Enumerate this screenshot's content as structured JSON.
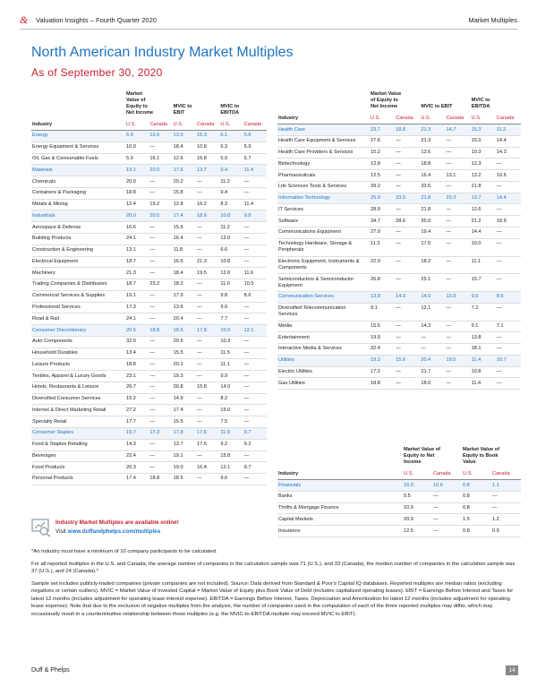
{
  "header": {
    "brand_mark": "&",
    "report": "Valuation Insights – Fourth Quarter 2020",
    "section": "Market Multiples"
  },
  "title": "North American Industry Market Multiples",
  "subtitle": "As of September 30, 2020",
  "left_table": {
    "column_groups": [
      "Market Value of Equity to Net Income",
      "MVIC to EBIT",
      "MVIC to EBITDA"
    ],
    "column_headers": [
      "Industry",
      "U.S.",
      "Canada",
      "U.S.",
      "Canada",
      "U.S.",
      "Canada"
    ],
    "rows": [
      {
        "name": "Energy",
        "sector": true,
        "values": [
          "5.9",
          "12.6",
          "13.0",
          "15.3",
          "6.1",
          "5.8"
        ]
      },
      {
        "name": "Energy Equipment & Services",
        "values": [
          "10.9",
          "—",
          "18.4",
          "10.8",
          "6.3",
          "5.9"
        ]
      },
      {
        "name": "Oil, Gas & Consumable Fuels",
        "values": [
          "5.9",
          "16.1",
          "12.6",
          "16.8",
          "5.9",
          "5.7"
        ]
      },
      {
        "name": "Materials",
        "sector": true,
        "values": [
          "19.1",
          "20.0",
          "17.6",
          "13.7",
          "9.4",
          "11.4"
        ]
      },
      {
        "name": "Chemicals",
        "values": [
          "20.0",
          "—",
          "20.2",
          "—",
          "11.2",
          "—"
        ]
      },
      {
        "name": "Containers & Packaging",
        "values": [
          "18.8",
          "—",
          "15.8",
          "—",
          "9.4",
          "—"
        ]
      },
      {
        "name": "Metals & Mining",
        "values": [
          "12.4",
          "19.2",
          "12.8",
          "16.2",
          "8.3",
          "11.4"
        ]
      },
      {
        "name": "Industrials",
        "sector": true,
        "values": [
          "20.0",
          "20.5",
          "17.4",
          "18.6",
          "10.8",
          "9.8"
        ]
      },
      {
        "name": "Aerospace & Defense",
        "values": [
          "16.6",
          "—",
          "15.6",
          "—",
          "11.2",
          "—"
        ]
      },
      {
        "name": "Building Products",
        "values": [
          "24.1",
          "—",
          "16.4",
          "—",
          "12.0",
          "—"
        ]
      },
      {
        "name": "Construction & Engineering",
        "values": [
          "13.1",
          "—",
          "11.8",
          "—",
          "6.6",
          "—"
        ]
      },
      {
        "name": "Electrical Equipment",
        "values": [
          "18.7",
          "—",
          "16.6",
          "21.3",
          "10.8",
          "—"
        ]
      },
      {
        "name": "Machinery",
        "values": [
          "21.3",
          "—",
          "18.4",
          "19.5",
          "12.6",
          "11.6"
        ]
      },
      {
        "name": "Trading Companies & Distributors",
        "values": [
          "18.7",
          "23.2",
          "18.2",
          "—",
          "11.0",
          "10.5"
        ]
      },
      {
        "name": "Commercial Services & Supplies",
        "values": [
          "19.1",
          "—",
          "17.9",
          "—",
          "9.8",
          "8.6"
        ]
      },
      {
        "name": "Professional Services",
        "values": [
          "17.3",
          "—",
          "13.6",
          "—",
          "9.9",
          "—"
        ]
      },
      {
        "name": "Road & Rail",
        "values": [
          "24.1",
          "—",
          "20.4",
          "—",
          "7.7",
          "—"
        ]
      },
      {
        "name": "Consumer Discretionary",
        "sector": true,
        "values": [
          "20.5",
          "18.8",
          "18.5",
          "17.8",
          "10.9",
          "12.1"
        ]
      },
      {
        "name": "Auto Components",
        "values": [
          "32.0",
          "—",
          "20.5",
          "—",
          "10.3",
          "—"
        ]
      },
      {
        "name": "Household Durables",
        "values": [
          "13.4",
          "—",
          "15.5",
          "—",
          "11.5",
          "—"
        ]
      },
      {
        "name": "Leisure Products",
        "values": [
          "18.8",
          "—",
          "20.1",
          "—",
          "11.1",
          "—"
        ]
      },
      {
        "name": "Textiles, Apparel & Luxury Goods",
        "values": [
          "23.1",
          "—",
          "19.3",
          "—",
          "9.9",
          "—"
        ]
      },
      {
        "name": "Hotels, Restaurants & Leisure",
        "values": [
          "26.7",
          "—",
          "30.8",
          "15.8",
          "14.0",
          "—"
        ]
      },
      {
        "name": "Diversified Consumer Services",
        "values": [
          "15.2",
          "—",
          "14.9",
          "—",
          "8.2",
          "—"
        ]
      },
      {
        "name": "Internet & Direct Marketing Retail",
        "values": [
          "27.2",
          "—",
          "17.4",
          "—",
          "15.0",
          "—"
        ]
      },
      {
        "name": "Specialty Retail",
        "values": [
          "17.7",
          "—",
          "15.5",
          "—",
          "7.5",
          "—"
        ]
      },
      {
        "name": "Consumer Staples",
        "sector": true,
        "values": [
          "19.7",
          "17.3",
          "17.8",
          "17.6",
          "11.9",
          "9.7"
        ]
      },
      {
        "name": "Food & Staples Retailing",
        "values": [
          "14.3",
          "—",
          "13.7",
          "17.6",
          "9.2",
          "9.2"
        ]
      },
      {
        "name": "Beverages",
        "values": [
          "22.4",
          "—",
          "19.1",
          "—",
          "15.8",
          "—"
        ]
      },
      {
        "name": "Food Products",
        "values": [
          "20.3",
          "—",
          "19.0",
          "16.4",
          "12.1",
          "9.7"
        ]
      },
      {
        "name": "Personal Products",
        "values": [
          "17.4",
          "18.8",
          "18.5",
          "—",
          "9.6",
          "—"
        ]
      }
    ]
  },
  "right_table": {
    "column_groups": [
      "Market Value of Equity to Net Income",
      "MVIC to EBIT",
      "MVIC to EBITDA"
    ],
    "column_headers": [
      "Industry",
      "U.S.",
      "Canada",
      "U.S.",
      "Canada",
      "U.S.",
      "Canada"
    ],
    "rows": [
      {
        "name": "Health Care",
        "sector": true,
        "values": [
          "23.7",
          "18.8",
          "21.3",
          "14.7",
          "15.3",
          "11.2"
        ]
      },
      {
        "name": "Health Care Equipment & Services",
        "values": [
          "27.6",
          "—",
          "21.3",
          "—",
          "15.0",
          "14.4"
        ]
      },
      {
        "name": "Health Care Providers & Services",
        "values": [
          "15.2",
          "—",
          "13.6",
          "—",
          "10.3",
          "14.3"
        ]
      },
      {
        "name": "Biotechnology",
        "values": [
          "12.8",
          "—",
          "18.8",
          "—",
          "12.3",
          "—"
        ]
      },
      {
        "name": "Pharmaceuticals",
        "values": [
          "12.5",
          "—",
          "16.4",
          "13.1",
          "13.2",
          "10.6"
        ]
      },
      {
        "name": "Life Sciences Tools & Services",
        "values": [
          "39.2",
          "—",
          "33.6",
          "—",
          "21.8",
          "—"
        ]
      },
      {
        "name": "Information Technology",
        "sector": true,
        "values": [
          "25.9",
          "23.5",
          "21.8",
          "20.3",
          "13.7",
          "14.4"
        ]
      },
      {
        "name": "IT Services",
        "values": [
          "28.9",
          "—",
          "21.8",
          "—",
          "12.6",
          "—"
        ]
      },
      {
        "name": "Software",
        "values": [
          "34.7",
          "28.6",
          "35.0",
          "—",
          "21.2",
          "18.9"
        ]
      },
      {
        "name": "Communications Equipment",
        "values": [
          "27.9",
          "—",
          "19.4",
          "—",
          "14.4",
          "—"
        ]
      },
      {
        "name": "Technology Hardware, Storage & Peripherals",
        "values": [
          "11.3",
          "—",
          "17.0",
          "—",
          "10.0",
          "—"
        ]
      },
      {
        "name": "Electronic Equipment, Instruments & Components",
        "values": [
          "22.9",
          "—",
          "18.2",
          "—",
          "11.1",
          "—"
        ]
      },
      {
        "name": "Semiconductors & Semiconductor Equipment",
        "values": [
          "26.8",
          "—",
          "25.1",
          "—",
          "15.7",
          "—"
        ]
      },
      {
        "name": "Communication Services",
        "sector": true,
        "values": [
          "13.8",
          "14.0",
          "14.9",
          "13.9",
          "9.5",
          "8.5"
        ]
      },
      {
        "name": "Diversified Telecommunication Services",
        "values": [
          "9.1",
          "—",
          "12.1",
          "—",
          "7.2",
          "—"
        ]
      },
      {
        "name": "Media",
        "values": [
          "15.5",
          "—",
          "14.3",
          "—",
          "9.1",
          "7.1"
        ]
      },
      {
        "name": "Entertainment",
        "values": [
          "19.9",
          "—",
          "—",
          "—",
          "13.8",
          "—"
        ]
      },
      {
        "name": "Interactive Media & Services",
        "values": [
          "32.4",
          "—",
          "—",
          "—",
          "18.1",
          "—"
        ]
      },
      {
        "name": "Utilities",
        "sector": true,
        "values": [
          "19.3",
          "15.6",
          "20.4",
          "19.5",
          "11.4",
          "10.7"
        ]
      },
      {
        "name": "Electric Utilities",
        "values": [
          "17.2",
          "—",
          "21.7",
          "—",
          "10.8",
          "—"
        ]
      },
      {
        "name": "Gas Utilities",
        "values": [
          "18.8",
          "—",
          "18.0",
          "—",
          "11.4",
          "—"
        ]
      }
    ]
  },
  "financials_table": {
    "column_groups": [
      "Market Value of Equity to Net Income",
      "Market Value of Equity to Book Value"
    ],
    "column_headers": [
      "Industry",
      "U.S.",
      "Canada",
      "U.S.",
      "Canada"
    ],
    "rows": [
      {
        "name": "Financials",
        "sector": true,
        "values": [
          "16.0",
          "10.6",
          "0.8",
          "1.1"
        ]
      },
      {
        "name": "Banks",
        "values": [
          "9.5",
          "—",
          "0.8",
          "—"
        ]
      },
      {
        "name": "Thrifts & Mortgage Finance",
        "values": [
          "10.0",
          "—",
          "0.8",
          "—"
        ]
      },
      {
        "name": "Capital Markets",
        "values": [
          "20.9",
          "—",
          "1.5",
          "1.2"
        ]
      },
      {
        "name": "Insurance",
        "values": [
          "12.5",
          "—",
          "0.8",
          "0.9"
        ]
      }
    ]
  },
  "promo": {
    "headline": "Industry Market Multiples are available online!",
    "visit": "Visit",
    "link": "www.duffandphelps.com/multiples"
  },
  "footnotes": [
    "*An industry must have a minimum of 10 company participants to be calculated.",
    "For all reported multiples in the U.S. and Canada, the average number of companies in the calculation sample was 71 (U.S.), and 33 (Canada); the median number of companies in the calculation sample was 37 (U.S.), and 24 (Canada).*",
    "Sample set includes publicly-traded companies (private companies are not included). Source: Data derived from Standard & Poor's Capital IQ databases. Reported multiples are median ratios (excluding negatives or certain outliers). MVIC = Market Value of Invested Capital = Market Value of Equity plus Book Value of Debt (includes capitalized operating leases). EBIT = Earnings Before Interest and Taxes for latest 12 months (includes adjustment for operating lease interest expense). EBITDA = Earnings Before Interest, Taxes, Depreciation and Amortization for latest 12 months (includes adjustment for operating lease expense). Note that due to the exclusion of negative multiples from the analysis, the number of companies used in the computation of each of the three reported multiples may differ, which may occasionally result in a counterintuitive relationship between those multiples (e.g. the MVIC-to-EBITDA multiple may exceed MVIC to EBIT)."
  ],
  "footer": {
    "company": "Duff & Phelps",
    "page": "14"
  }
}
